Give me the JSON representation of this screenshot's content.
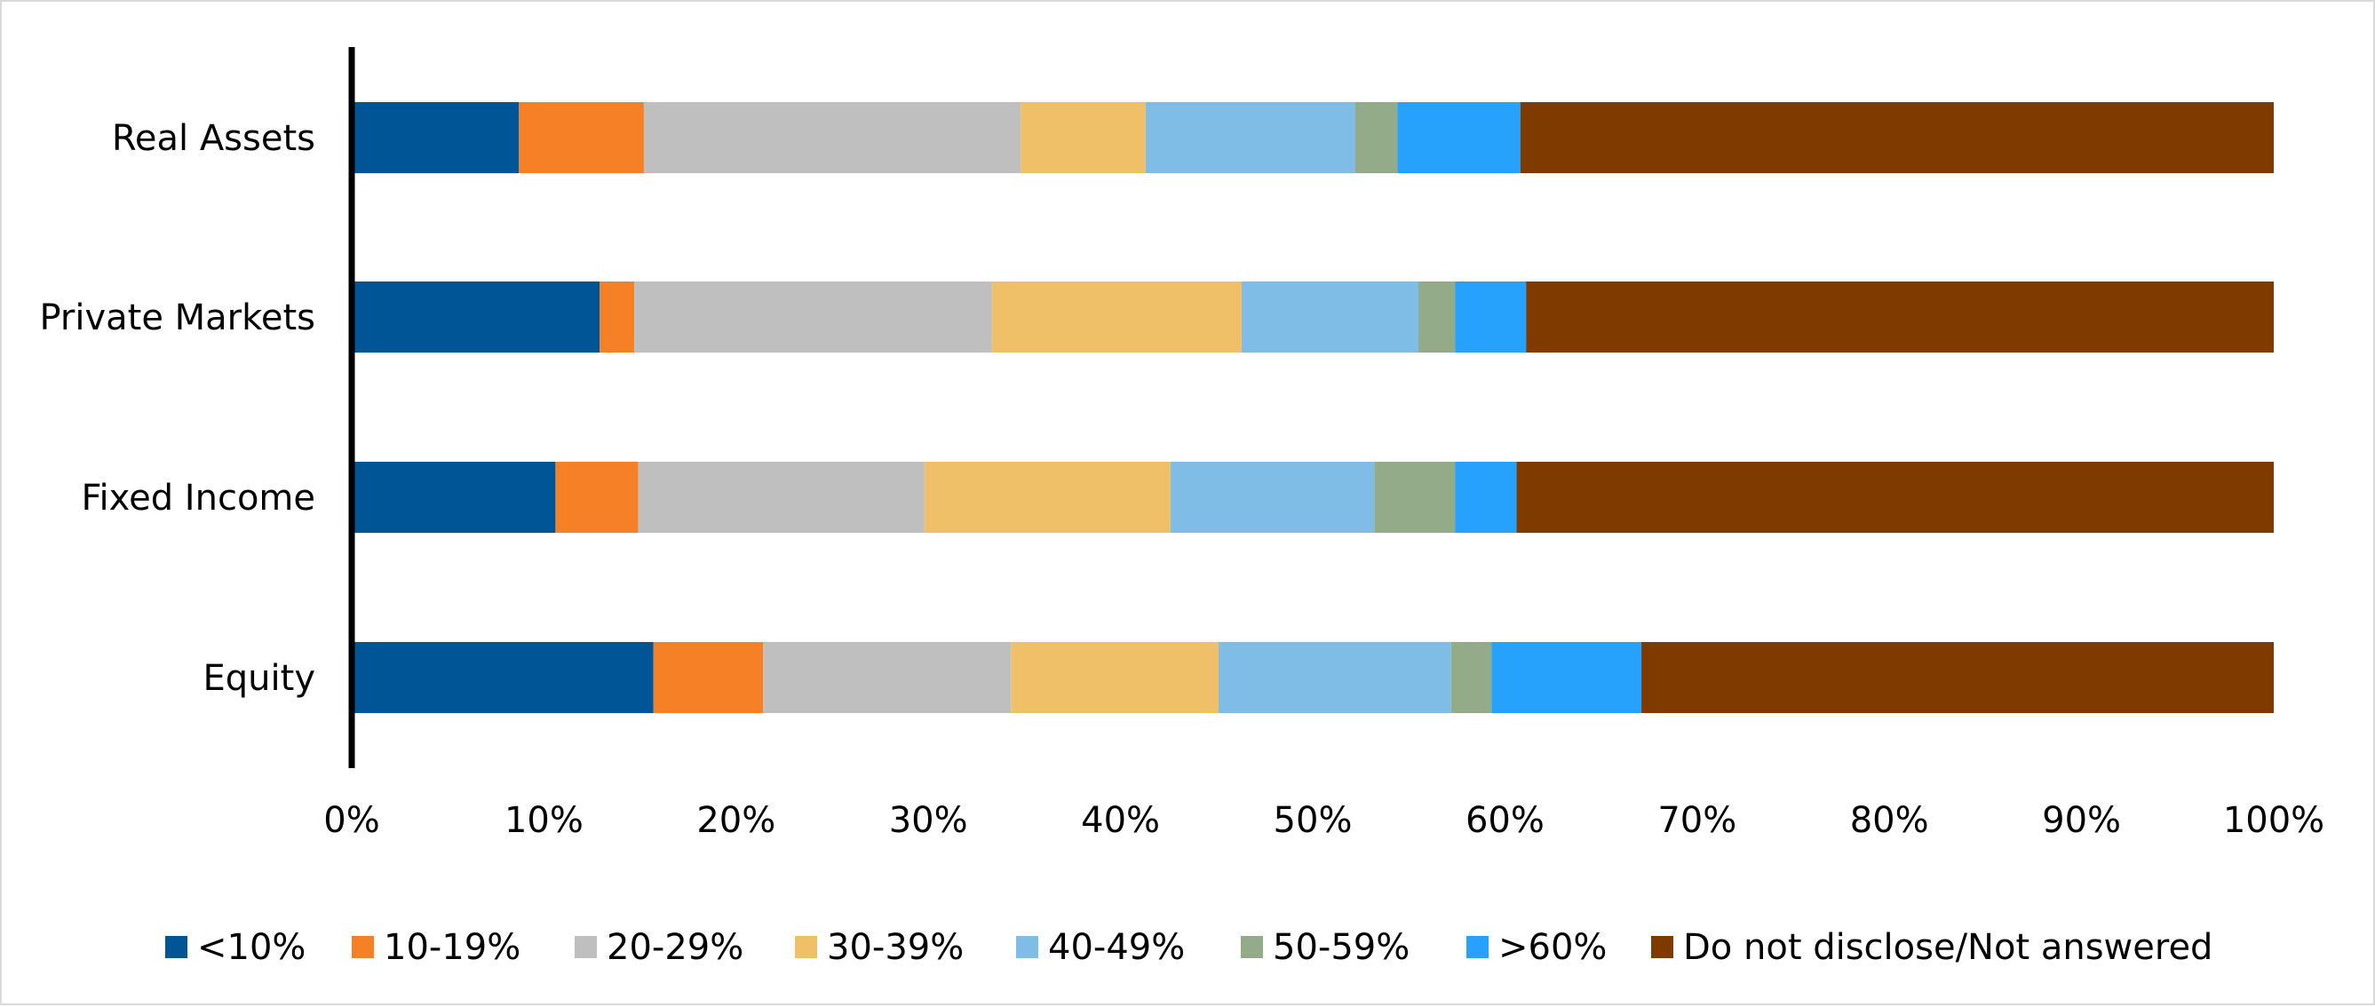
{
  "chart_data": {
    "type": "bar",
    "orientation": "horizontal",
    "stacked": "100%",
    "title": "",
    "xlabel": "",
    "ylabel": "",
    "xlim": [
      0,
      100
    ],
    "x_ticks": [
      "0%",
      "10%",
      "20%",
      "30%",
      "40%",
      "50%",
      "60%",
      "70%",
      "80%",
      "90%",
      "100%"
    ],
    "categories": [
      "Real Assets",
      "Private Markets",
      "Fixed Income",
      "Equity"
    ],
    "series": [
      {
        "name": "<10%",
        "color": "#005596",
        "values": [
          8.7,
          12.9,
          10.6,
          15.7
        ]
      },
      {
        "name": "10-19%",
        "color": "#F58025",
        "values": [
          6.5,
          1.8,
          4.3,
          5.7
        ]
      },
      {
        "name": "20-29%",
        "color": "#BFBFBF",
        "values": [
          19.6,
          18.6,
          14.9,
          12.9
        ]
      },
      {
        "name": "30-39%",
        "color": "#EFC068",
        "values": [
          6.5,
          13.0,
          12.8,
          10.8
        ]
      },
      {
        "name": "40-49%",
        "color": "#7FBDE7",
        "values": [
          10.9,
          9.2,
          10.6,
          12.1
        ]
      },
      {
        "name": "50-59%",
        "color": "#93AB88",
        "values": [
          2.2,
          1.9,
          4.2,
          2.1
        ]
      },
      {
        "name": ">60%",
        "color": "#27A2FC",
        "values": [
          6.4,
          3.7,
          3.2,
          7.8
        ]
      },
      {
        "name": "Do not disclose/Not answered",
        "color": "#7F3A00",
        "values": [
          39.2,
          38.9,
          39.4,
          32.9
        ]
      }
    ],
    "legend": "bottom",
    "grid": false
  }
}
